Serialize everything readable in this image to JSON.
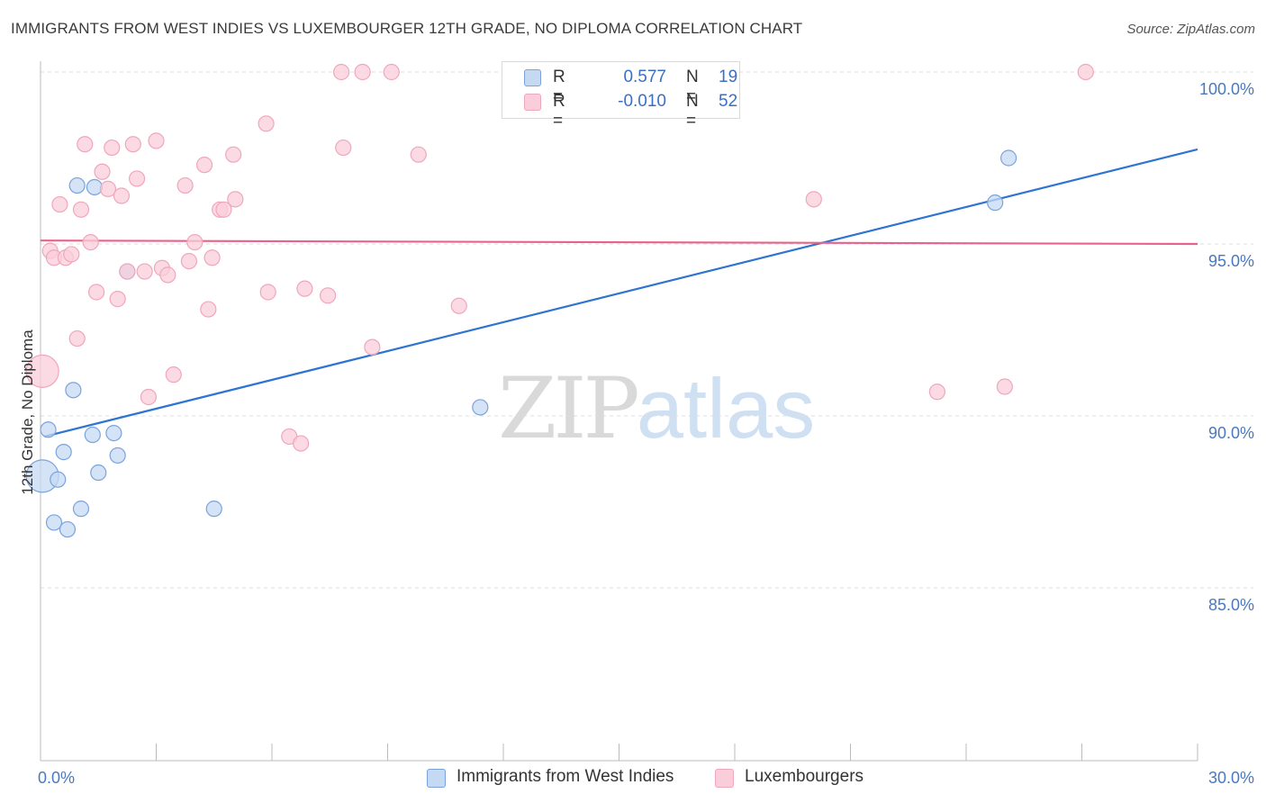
{
  "header": {
    "title": "IMMIGRANTS FROM WEST INDIES VS LUXEMBOURGER 12TH GRADE, NO DIPLOMA CORRELATION CHART",
    "source": "Source: ZipAtlas.com"
  },
  "legend": {
    "series1": {
      "r_label": "R =",
      "r_value": "0.577",
      "n_label": "N =",
      "n_value": "19"
    },
    "series2": {
      "r_label": "R =",
      "r_value": "-0.010",
      "n_label": "N =",
      "n_value": "52"
    }
  },
  "watermark": {
    "zip": "ZIP",
    "atlas": "atlas"
  },
  "colors": {
    "blue_fill": "#c5d9f3",
    "blue_stroke": "#7aa3dd",
    "blue_line": "#2e74d1",
    "pink_fill": "#f9cdd9",
    "pink_stroke": "#f0a6bc",
    "pink_line": "#e8638b",
    "tick_text": "#4a78c0",
    "grid": "#dddddd"
  },
  "chart_data": {
    "type": "scatter",
    "title": "IMMIGRANTS FROM WEST INDIES VS LUXEMBOURGER 12TH GRADE, NO DIPLOMA CORRELATION CHART",
    "xlabel": "",
    "ylabel": "12th Grade, No Diploma",
    "xlim": [
      0,
      30
    ],
    "ylim": [
      80.5,
      101
    ],
    "x_tick_labels": [
      "0.0%",
      "30.0%"
    ],
    "y_ticks": [
      85,
      90,
      95,
      100
    ],
    "y_tick_labels": [
      "85.0%",
      "90.0%",
      "95.0%",
      "100.0%"
    ],
    "series": [
      {
        "name": "Immigrants from West Indies",
        "color": "blue",
        "points": [
          [
            0.05,
            88.25
          ],
          [
            0.2,
            89.6
          ],
          [
            0.35,
            86.9
          ],
          [
            0.45,
            88.15
          ],
          [
            0.6,
            88.95
          ],
          [
            0.7,
            86.7
          ],
          [
            0.85,
            90.75
          ],
          [
            0.95,
            96.7
          ],
          [
            1.05,
            87.3
          ],
          [
            1.35,
            89.45
          ],
          [
            1.4,
            96.65
          ],
          [
            1.5,
            88.35
          ],
          [
            1.9,
            89.5
          ],
          [
            2.0,
            88.85
          ],
          [
            2.25,
            94.2
          ],
          [
            4.5,
            87.3
          ],
          [
            11.4,
            90.25
          ],
          [
            24.75,
            96.2
          ],
          [
            25.1,
            97.5
          ]
        ],
        "trend": {
          "x": [
            0.1,
            30
          ],
          "y": [
            89.4,
            97.75
          ]
        }
      },
      {
        "name": "Luxembourgers",
        "color": "pink",
        "points": [
          [
            0.05,
            91.3
          ],
          [
            0.25,
            94.8
          ],
          [
            0.35,
            94.6
          ],
          [
            0.5,
            96.15
          ],
          [
            0.65,
            94.6
          ],
          [
            0.8,
            94.7
          ],
          [
            0.95,
            92.25
          ],
          [
            1.05,
            96.0
          ],
          [
            1.15,
            97.9
          ],
          [
            1.3,
            95.05
          ],
          [
            1.45,
            93.6
          ],
          [
            1.6,
            97.1
          ],
          [
            1.75,
            96.6
          ],
          [
            1.85,
            97.8
          ],
          [
            2.0,
            93.4
          ],
          [
            2.1,
            96.4
          ],
          [
            2.25,
            94.2
          ],
          [
            2.4,
            97.9
          ],
          [
            2.5,
            96.9
          ],
          [
            2.7,
            94.2
          ],
          [
            2.8,
            90.55
          ],
          [
            3.0,
            98.0
          ],
          [
            3.15,
            94.3
          ],
          [
            3.3,
            94.1
          ],
          [
            3.45,
            91.2
          ],
          [
            3.75,
            96.7
          ],
          [
            3.85,
            94.5
          ],
          [
            4.0,
            95.05
          ],
          [
            4.25,
            97.3
          ],
          [
            4.35,
            93.1
          ],
          [
            4.45,
            94.6
          ],
          [
            4.65,
            96.0
          ],
          [
            4.75,
            96.0
          ],
          [
            5.0,
            97.6
          ],
          [
            5.05,
            96.3
          ],
          [
            5.85,
            98.5
          ],
          [
            5.9,
            93.6
          ],
          [
            6.45,
            89.4
          ],
          [
            6.75,
            89.2
          ],
          [
            6.85,
            93.7
          ],
          [
            7.45,
            93.5
          ],
          [
            7.8,
            100.0
          ],
          [
            7.85,
            97.8
          ],
          [
            8.35,
            100.0
          ],
          [
            8.6,
            92.0
          ],
          [
            9.1,
            100.0
          ],
          [
            9.8,
            97.6
          ],
          [
            10.85,
            93.2
          ],
          [
            20.05,
            96.3
          ],
          [
            23.25,
            90.7
          ],
          [
            25.0,
            90.85
          ],
          [
            27.1,
            100.0
          ]
        ],
        "trend": {
          "x": [
            0,
            30
          ],
          "y": [
            95.1,
            95.0
          ]
        }
      }
    ]
  },
  "bottom_legend": {
    "series1_label": "Immigrants from West Indies",
    "series2_label": "Luxembourgers"
  }
}
